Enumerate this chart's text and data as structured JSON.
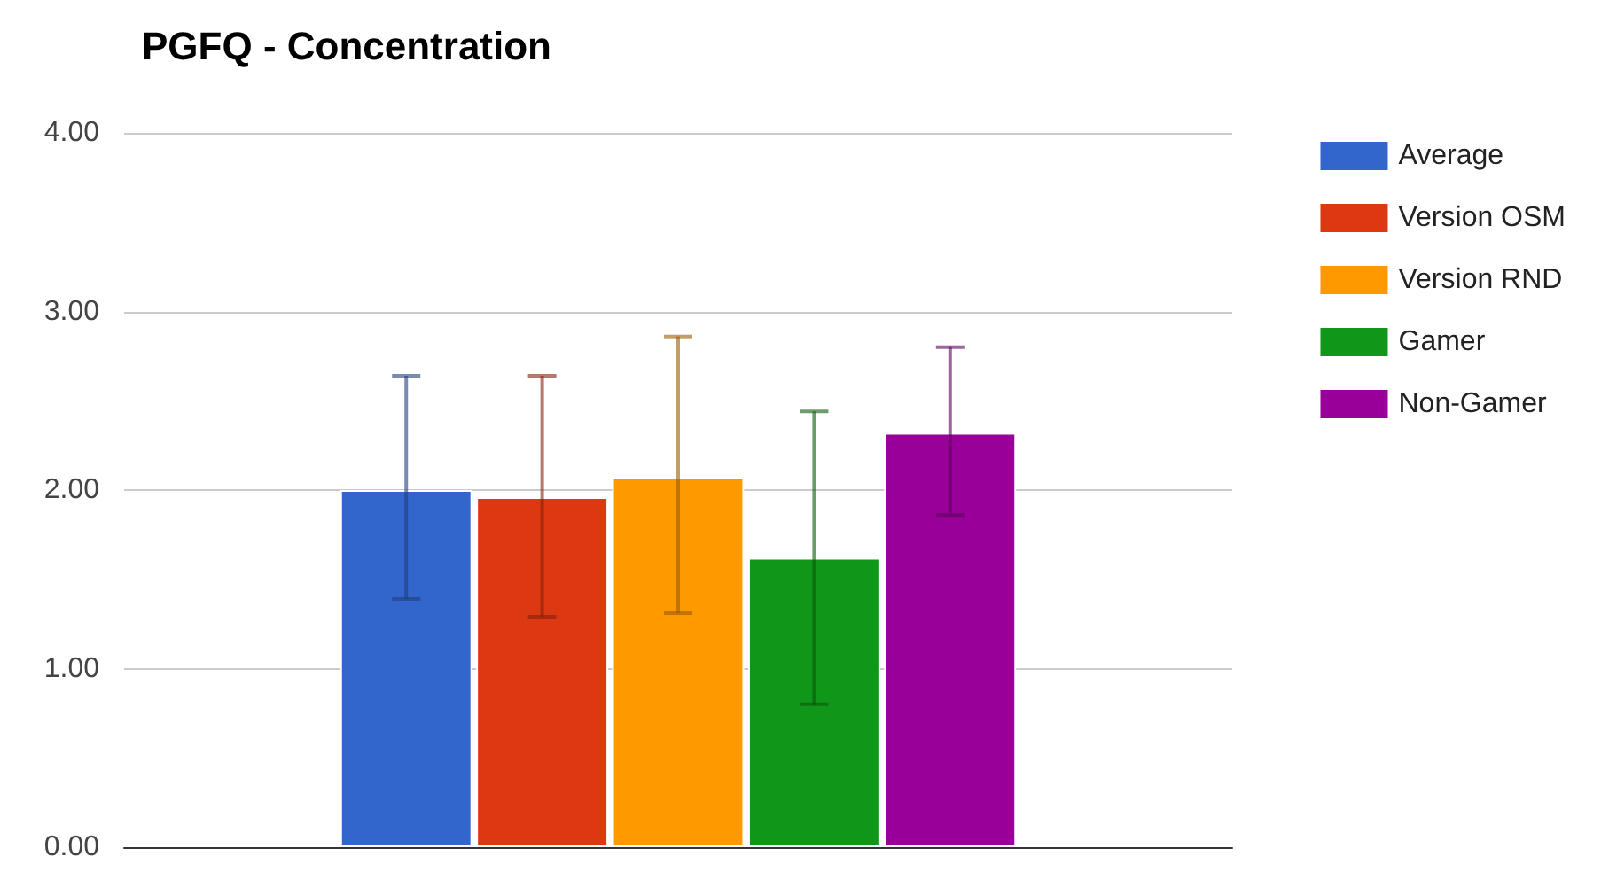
{
  "chart_data": {
    "type": "bar",
    "title": "PGFQ - Concentration",
    "categories": [
      null
    ],
    "series": [
      {
        "name": "Average",
        "color": "#3366cc",
        "values": [
          2.0
        ],
        "errors": [
          [
            1.39,
            2.64
          ]
        ]
      },
      {
        "name": "Version OSM",
        "color": "#dc3912",
        "values": [
          1.96
        ],
        "errors": [
          [
            1.29,
            2.64
          ]
        ]
      },
      {
        "name": "Version RND",
        "color": "#ff9900",
        "values": [
          2.07
        ],
        "errors": [
          [
            1.31,
            2.86
          ]
        ]
      },
      {
        "name": "Gamer",
        "color": "#109618",
        "values": [
          1.62
        ],
        "errors": [
          [
            0.8,
            2.44
          ]
        ]
      },
      {
        "name": "Non-Gamer",
        "color": "#990099",
        "values": [
          2.32
        ],
        "errors": [
          [
            1.86,
            2.8
          ]
        ]
      }
    ],
    "ylim": [
      0,
      4
    ],
    "yticks": [
      {
        "value": 0,
        "label": "0.00"
      },
      {
        "value": 1,
        "label": "1.00"
      },
      {
        "value": 2,
        "label": "2.00"
      },
      {
        "value": 3,
        "label": "3.00"
      },
      {
        "value": 4,
        "label": "4.00"
      }
    ],
    "grid": "y",
    "legend": "right"
  }
}
